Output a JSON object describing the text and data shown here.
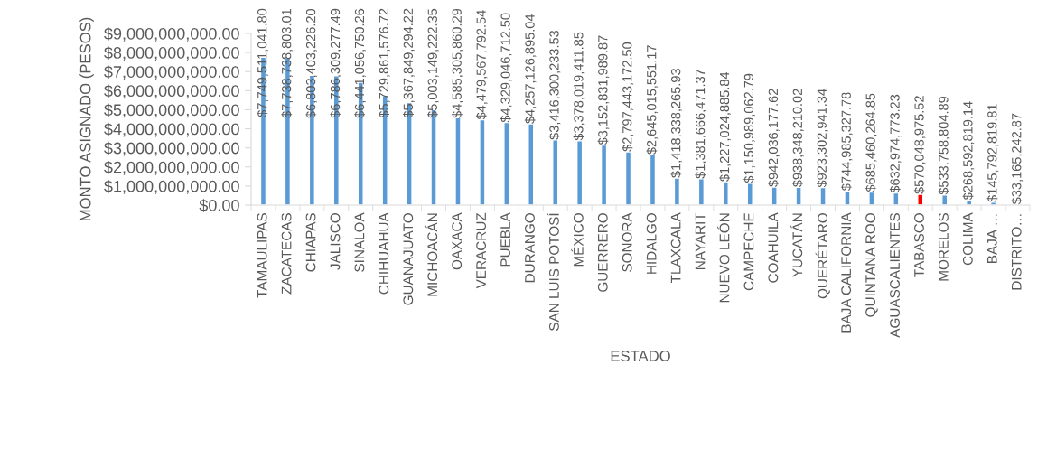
{
  "chart_data": {
    "type": "bar",
    "xlabel": "ESTADO",
    "ylabel": "MONTO ASIGNADO (PESOS)",
    "categories": [
      "TAMAULIPAS",
      "ZACATECAS",
      "CHIAPAS",
      "JALISCO",
      "SINALOA",
      "CHIHUAHUA",
      "GUANAJUATO",
      "MICHOACÁN",
      "OAXACA",
      "VERACRUZ",
      "PUEBLA",
      "DURANGO",
      "SAN LUIS POTOSÍ",
      "MÉXICO",
      "GUERRERO",
      "SONORA",
      "HIDALGO",
      "TLAXCALA",
      "NAYARIT",
      "NUEVO LEÓN",
      "CAMPECHE",
      "COAHUILA",
      "YUCATÁN",
      "QUERÉTARO",
      "BAJA CALIFORNIA",
      "QUINTANA ROO",
      "AGUASCALIENTES",
      "TABASCO",
      "MORELOS",
      "COLIMA",
      "BAJA …",
      "DISTRITO…"
    ],
    "values": [
      7749511041.8,
      7738738803.01,
      6803403226.2,
      6786309277.49,
      6441056750.26,
      5729861576.72,
      5367849294.22,
      5003149222.35,
      4585305860.29,
      4479567792.54,
      4329046712.5,
      4257126895.04,
      3416300233.53,
      3378019411.85,
      3152831989.87,
      2797443172.5,
      2645015551.17,
      1418338265.93,
      1381666471.37,
      1227024885.84,
      1150989062.79,
      942036177.62,
      938348210.02,
      923302941.34,
      744985327.78,
      685460264.85,
      632974773.23,
      570048975.52,
      533758804.89,
      268592819.14,
      145792819.81,
      33165242.87
    ],
    "value_labels": [
      "$7,749,511,041.80",
      "$7,738,738,803.01",
      "$6,803,403,226.20",
      "$6,786,309,277.49",
      "$6,441,056,750.26",
      "$5,729,861,576.72",
      "$5,367,849,294.22",
      "$5,003,149,222.35",
      "$4,585,305,860.29",
      "$4,479,567,792.54",
      "$4,329,046,712.50",
      "$4,257,126,895.04",
      "$3,416,300,233.53",
      "$3,378,019,411.85",
      "$3,152,831,989.87",
      "$2,797,443,172.50",
      "$2,645,015,551.17",
      "$1,418,338,265.93",
      "$1,381,666,471.37",
      "$1,227,024,885.84",
      "$1,150,989,062.79",
      "$942,036,177.62",
      "$938,348,210.02",
      "$923,302,941.34",
      "$744,985,327.78",
      "$685,460,264.85",
      "$632,974,773.23",
      "$570,048,975.52",
      "$533,758,804.89",
      "$268,592,819.14",
      "$145,792,819.81",
      "$33,165,242.87"
    ],
    "colors": [
      "#5b9bd5",
      "#5b9bd5",
      "#5b9bd5",
      "#5b9bd5",
      "#5b9bd5",
      "#5b9bd5",
      "#5b9bd5",
      "#5b9bd5",
      "#5b9bd5",
      "#5b9bd5",
      "#5b9bd5",
      "#5b9bd5",
      "#5b9bd5",
      "#5b9bd5",
      "#5b9bd5",
      "#5b9bd5",
      "#5b9bd5",
      "#5b9bd5",
      "#5b9bd5",
      "#5b9bd5",
      "#5b9bd5",
      "#5b9bd5",
      "#5b9bd5",
      "#5b9bd5",
      "#5b9bd5",
      "#5b9bd5",
      "#5b9bd5",
      "#ff0000",
      "#5b9bd5",
      "#5b9bd5",
      "#5b9bd5",
      "#5b9bd5"
    ],
    "ylim": [
      0,
      9000000000
    ],
    "yticks": [
      {
        "value": 0,
        "label": "$0.00"
      },
      {
        "value": 1000000000,
        "label": "$1,000,000,000.00"
      },
      {
        "value": 2000000000,
        "label": "$2,000,000,000.00"
      },
      {
        "value": 3000000000,
        "label": "$3,000,000,000.00"
      },
      {
        "value": 4000000000,
        "label": "$4,000,000,000.00"
      },
      {
        "value": 5000000000,
        "label": "$5,000,000,000.00"
      },
      {
        "value": 6000000000,
        "label": "$6,000,000,000.00"
      },
      {
        "value": 7000000000,
        "label": "$7,000,000,000.00"
      },
      {
        "value": 8000000000,
        "label": "$8,000,000,000.00"
      },
      {
        "value": 9000000000,
        "label": "$9,000,000,000.00"
      }
    ],
    "grid": false,
    "legend": false
  }
}
